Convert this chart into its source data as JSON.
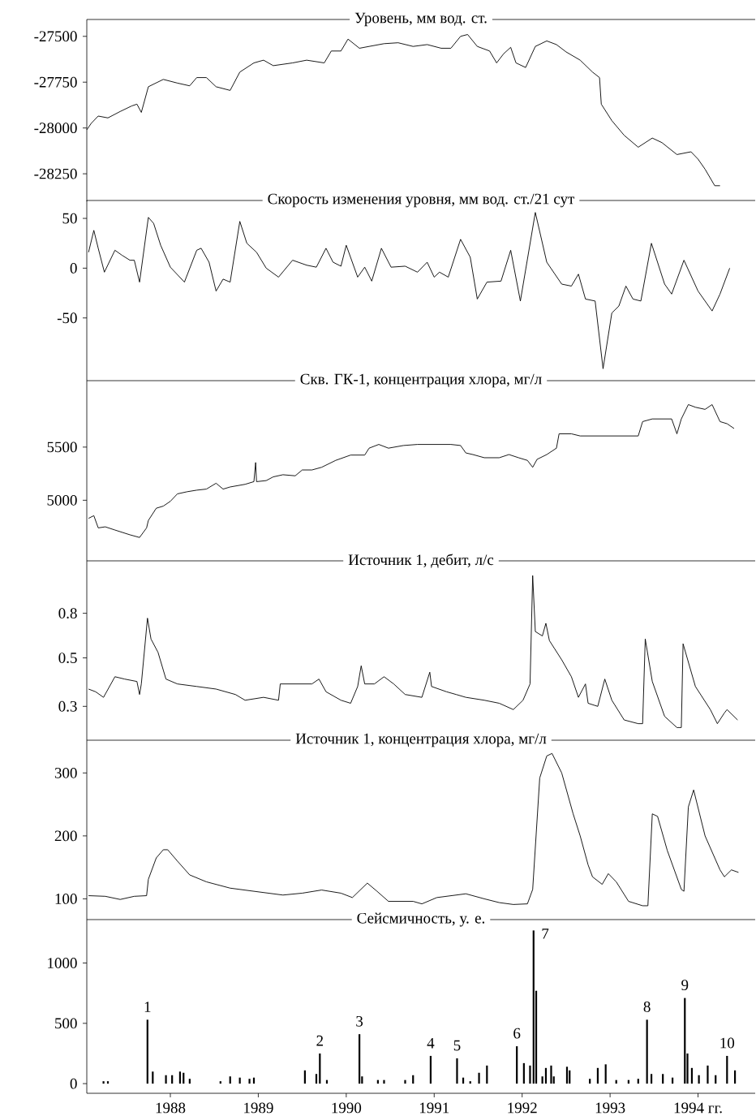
{
  "chart_data": [
    {
      "type": "line",
      "title": "Уровень, мм вод. ст.",
      "xlim": [
        1987.05,
        1994.65
      ],
      "ylim": [
        -28400,
        -27408
      ],
      "yticks": [
        -27500,
        -27750,
        -28000,
        -28250
      ],
      "tick_labels": "y",
      "x": [
        1987.05,
        1987.1,
        1987.18,
        1987.29,
        1987.43,
        1987.56,
        1987.62,
        1987.67,
        1987.75,
        1987.92,
        1988.08,
        1988.22,
        1988.3,
        1988.41,
        1988.52,
        1988.68,
        1988.79,
        1988.95,
        1989.06,
        1989.17,
        1989.39,
        1989.55,
        1989.75,
        1989.83,
        1989.94,
        1990.02,
        1990.15,
        1990.26,
        1990.43,
        1990.59,
        1990.76,
        1990.92,
        1991.08,
        1991.19,
        1991.3,
        1991.38,
        1991.49,
        1991.63,
        1991.71,
        1991.79,
        1991.87,
        1991.93,
        1992.04,
        1992.15,
        1992.28,
        1992.39,
        1992.5,
        1992.66,
        1992.8,
        1992.88,
        1992.9,
        1993.02,
        1993.16,
        1993.32,
        1993.48,
        1993.59,
        1993.76,
        1993.92,
        1994.0,
        1994.08,
        1994.19,
        1994.25
      ],
      "series": [
        {
          "color": "#000000",
          "values": [
            -28010,
            -27975,
            -27935,
            -27945,
            -27910,
            -27880,
            -27870,
            -27915,
            -27775,
            -27735,
            -27755,
            -27770,
            -27725,
            -27725,
            -27775,
            -27795,
            -27695,
            -27645,
            -27630,
            -27660,
            -27645,
            -27630,
            -27645,
            -27580,
            -27580,
            -27515,
            -27565,
            -27555,
            -27540,
            -27535,
            -27555,
            -27545,
            -27565,
            -27565,
            -27500,
            -27490,
            -27555,
            -27580,
            -27645,
            -27595,
            -27560,
            -27645,
            -27670,
            -27555,
            -27525,
            -27545,
            -27585,
            -27630,
            -27695,
            -27725,
            -27870,
            -27960,
            -28040,
            -28105,
            -28055,
            -28080,
            -28145,
            -28130,
            -28170,
            -28225,
            -28315,
            -28315
          ]
        }
      ]
    },
    {
      "type": "line",
      "title": "Скорость изменения уровня, мм вод. ст./21 сут",
      "xlim": [
        1987.05,
        1994.65
      ],
      "ylim": [
        -113,
        68
      ],
      "yticks": [
        50,
        0,
        -50
      ],
      "tick_labels": "y",
      "x": [
        1987.07,
        1987.13,
        1987.18,
        1987.25,
        1987.37,
        1987.45,
        1987.54,
        1987.59,
        1987.65,
        1987.75,
        1987.81,
        1987.89,
        1988.0,
        1988.16,
        1988.3,
        1988.35,
        1988.44,
        1988.52,
        1988.6,
        1988.68,
        1988.79,
        1988.87,
        1988.98,
        1989.09,
        1989.23,
        1989.39,
        1989.55,
        1989.66,
        1989.77,
        1989.85,
        1989.94,
        1990.0,
        1990.13,
        1990.21,
        1990.29,
        1990.4,
        1990.51,
        1990.67,
        1990.81,
        1990.92,
        1991.0,
        1991.06,
        1991.16,
        1991.3,
        1991.41,
        1991.49,
        1991.6,
        1991.76,
        1991.87,
        1991.98,
        1992.15,
        1992.28,
        1992.45,
        1992.56,
        1992.64,
        1992.72,
        1992.83,
        1992.92,
        1993.02,
        1993.1,
        1993.18,
        1993.26,
        1993.35,
        1993.47,
        1993.62,
        1993.7,
        1993.84,
        1994.0,
        1994.16,
        1994.25,
        1994.36
      ],
      "series": [
        {
          "color": "#000000",
          "values": [
            16,
            38,
            20,
            -4,
            18,
            13,
            8,
            8,
            -14,
            51,
            45,
            23,
            1,
            -14,
            18,
            20,
            6,
            -23,
            -11,
            -14,
            47,
            25,
            16,
            0,
            -9,
            8,
            3,
            1,
            20,
            6,
            2,
            23,
            -9,
            1,
            -13,
            20,
            1,
            2,
            -4,
            6,
            -9,
            -4,
            -9,
            29,
            11,
            -31,
            -14,
            -13,
            18,
            -33,
            56,
            6,
            -16,
            -18,
            -6,
            -31,
            -33,
            -101,
            -45,
            -38,
            -18,
            -31,
            -33,
            25,
            -16,
            -26,
            8,
            -23,
            -43,
            -26,
            0
          ]
        }
      ]
    },
    {
      "type": "line",
      "title": "Скв. ГК-1, концентрация хлора, мг/л",
      "xlim": [
        1987.05,
        1994.65
      ],
      "ylim": [
        4430,
        6125
      ],
      "yticks": [
        5500,
        5000
      ],
      "tick_labels": "y",
      "x": [
        1987.07,
        1987.13,
        1987.18,
        1987.26,
        1987.37,
        1987.54,
        1987.65,
        1987.73,
        1987.75,
        1987.84,
        1987.92,
        1988.0,
        1988.08,
        1988.19,
        1988.3,
        1988.41,
        1988.52,
        1988.6,
        1988.68,
        1988.85,
        1988.95,
        1988.97,
        1988.98,
        1989.09,
        1989.17,
        1989.28,
        1989.42,
        1989.5,
        1989.61,
        1989.72,
        1989.88,
        1990.05,
        1990.21,
        1990.26,
        1990.37,
        1990.48,
        1990.65,
        1990.81,
        1991.03,
        1991.19,
        1991.3,
        1991.36,
        1991.44,
        1991.57,
        1991.74,
        1991.85,
        1991.96,
        1992.06,
        1992.12,
        1992.17,
        1992.28,
        1992.39,
        1992.42,
        1992.56,
        1992.66,
        1992.94,
        1993.16,
        1993.32,
        1993.37,
        1993.48,
        1993.7,
        1993.76,
        1993.81,
        1993.89,
        1993.97,
        1994.08,
        1994.16,
        1994.25,
        1994.33,
        1994.41
      ],
      "series": [
        {
          "color": "#000000",
          "values": [
            4830,
            4855,
            4740,
            4750,
            4720,
            4675,
            4650,
            4740,
            4810,
            4925,
            4945,
            4990,
            5060,
            5080,
            5095,
            5105,
            5160,
            5105,
            5125,
            5150,
            5175,
            5355,
            5175,
            5185,
            5220,
            5240,
            5230,
            5285,
            5285,
            5310,
            5375,
            5425,
            5425,
            5490,
            5525,
            5490,
            5515,
            5525,
            5525,
            5525,
            5515,
            5445,
            5430,
            5400,
            5400,
            5430,
            5400,
            5375,
            5310,
            5385,
            5430,
            5490,
            5625,
            5625,
            5605,
            5605,
            5605,
            5605,
            5740,
            5765,
            5765,
            5625,
            5765,
            5900,
            5875,
            5855,
            5900,
            5740,
            5720,
            5675
          ]
        }
      ]
    },
    {
      "type": "line",
      "title": "Источник 1, дебит, л/с",
      "xlim": [
        1987.05,
        1994.65
      ],
      "ylim": [
        0.21,
        1.39
      ],
      "yticks": [
        0.8,
        0.5,
        0.3
      ],
      "log": true,
      "tick_labels": "y",
      "x": [
        1987.07,
        1987.15,
        1987.24,
        1987.37,
        1987.48,
        1987.62,
        1987.65,
        1987.67,
        1987.74,
        1987.78,
        1987.86,
        1987.95,
        1988.08,
        1988.3,
        1988.52,
        1988.74,
        1988.85,
        1989.06,
        1989.23,
        1989.25,
        1989.39,
        1989.61,
        1989.69,
        1989.77,
        1989.94,
        1990.05,
        1990.13,
        1990.17,
        1990.21,
        1990.32,
        1990.43,
        1990.54,
        1990.67,
        1990.86,
        1990.95,
        1990.97,
        1991.14,
        1991.25,
        1991.36,
        1991.57,
        1991.74,
        1991.9,
        1992.01,
        1992.09,
        1992.12,
        1992.15,
        1992.23,
        1992.27,
        1992.31,
        1992.45,
        1992.56,
        1992.64,
        1992.72,
        1992.75,
        1992.86,
        1992.94,
        1993.02,
        1993.16,
        1993.32,
        1993.37,
        1993.4,
        1993.48,
        1993.62,
        1993.76,
        1993.81,
        1993.83,
        1993.97,
        1994.14,
        1994.22,
        1994.3,
        1994.33,
        1994.45
      ],
      "series": [
        {
          "color": "#000000",
          "values": [
            0.36,
            0.35,
            0.33,
            0.41,
            0.4,
            0.39,
            0.34,
            0.38,
            0.76,
            0.61,
            0.53,
            0.4,
            0.38,
            0.37,
            0.36,
            0.34,
            0.32,
            0.33,
            0.32,
            0.38,
            0.38,
            0.38,
            0.4,
            0.35,
            0.32,
            0.31,
            0.37,
            0.46,
            0.38,
            0.38,
            0.41,
            0.38,
            0.34,
            0.33,
            0.43,
            0.37,
            0.35,
            0.34,
            0.33,
            0.32,
            0.31,
            0.29,
            0.32,
            0.38,
            1.19,
            0.66,
            0.63,
            0.72,
            0.6,
            0.49,
            0.41,
            0.33,
            0.38,
            0.31,
            0.3,
            0.4,
            0.32,
            0.26,
            0.25,
            0.25,
            0.61,
            0.39,
            0.27,
            0.24,
            0.24,
            0.58,
            0.37,
            0.29,
            0.25,
            0.28,
            0.29,
            0.26
          ]
        }
      ]
    },
    {
      "type": "line",
      "title": "Источник 1, концентрация хлора, мг/л",
      "xlim": [
        1987.05,
        1994.65
      ],
      "ylim": [
        67,
        352
      ],
      "yticks": [
        300,
        200,
        100
      ],
      "tick_labels": "y",
      "x": [
        1987.07,
        1987.26,
        1987.43,
        1987.59,
        1987.73,
        1987.75,
        1987.84,
        1987.92,
        1987.97,
        1988.08,
        1988.22,
        1988.41,
        1988.68,
        1988.95,
        1989.28,
        1989.5,
        1989.72,
        1989.94,
        1990.07,
        1990.24,
        1990.35,
        1990.48,
        1990.76,
        1990.86,
        1991.03,
        1991.36,
        1991.57,
        1991.74,
        1991.9,
        1992.06,
        1992.12,
        1992.2,
        1992.28,
        1992.34,
        1992.45,
        1992.58,
        1992.66,
        1992.75,
        1992.8,
        1992.91,
        1992.98,
        1993.07,
        1993.21,
        1993.37,
        1993.43,
        1993.48,
        1993.54,
        1993.65,
        1993.81,
        1993.84,
        1993.89,
        1993.95,
        1994.08,
        1994.25,
        1994.3,
        1994.38,
        1994.46
      ],
      "series": [
        {
          "color": "#000000",
          "values": [
            105,
            104,
            99,
            104,
            105,
            131,
            165,
            178,
            178,
            160,
            138,
            127,
            117,
            112,
            106,
            109,
            114,
            109,
            102,
            125,
            112,
            96,
            96,
            92,
            102,
            108,
            100,
            94,
            91,
            92,
            115,
            292,
            327,
            331,
            300,
            235,
            200,
            154,
            135,
            123,
            140,
            127,
            96,
            89,
            89,
            235,
            231,
            177,
            115,
            112,
            246,
            273,
            200,
            146,
            135,
            146,
            142
          ]
        }
      ]
    },
    {
      "type": "bar",
      "title": "Сейсмичность, у. е.",
      "xlim": [
        1987.05,
        1994.65
      ],
      "ylim": [
        -80,
        1360
      ],
      "yticks": [
        1000,
        500,
        0
      ],
      "xticks": [
        1988,
        1989,
        1990,
        1991,
        1992,
        1993,
        {
          "value": 1994,
          "label": "1994 гг."
        }
      ],
      "x": [
        1987.24,
        1987.29,
        1987.74,
        1987.8,
        1987.95,
        1988.02,
        1988.11,
        1988.15,
        1988.22,
        1988.57,
        1988.68,
        1988.79,
        1988.9,
        1988.95,
        1989.53,
        1989.66,
        1989.7,
        1989.78,
        1990.15,
        1990.18,
        1990.36,
        1990.43,
        1990.67,
        1990.76,
        1990.96,
        1991.26,
        1991.33,
        1991.41,
        1991.51,
        1991.6,
        1991.94,
        1992.02,
        1992.09,
        1992.13,
        1992.16,
        1992.23,
        1992.27,
        1992.33,
        1992.36,
        1992.51,
        1992.54,
        1992.77,
        1992.86,
        1992.95,
        1993.07,
        1993.21,
        1993.32,
        1993.42,
        1993.47,
        1993.6,
        1993.71,
        1993.85,
        1993.88,
        1993.93,
        1994.01,
        1994.11,
        1994.2,
        1994.33,
        1994.42
      ],
      "series": [
        {
          "color": "#000000",
          "values": [
            20,
            20,
            530,
            100,
            70,
            70,
            100,
            90,
            40,
            20,
            60,
            50,
            40,
            50,
            110,
            80,
            250,
            30,
            410,
            60,
            30,
            30,
            30,
            70,
            230,
            210,
            50,
            20,
            90,
            150,
            310,
            170,
            150,
            1270,
            770,
            60,
            130,
            150,
            60,
            140,
            110,
            40,
            130,
            160,
            30,
            30,
            40,
            530,
            80,
            80,
            50,
            710,
            250,
            130,
            70,
            150,
            70,
            230,
            110
          ]
        }
      ],
      "annotations": [
        {
          "text": "1",
          "x": 1987.74,
          "y": 530
        },
        {
          "text": "2",
          "x": 1989.7,
          "y": 250
        },
        {
          "text": "3",
          "x": 1990.15,
          "y": 410
        },
        {
          "text": "4",
          "x": 1990.96,
          "y": 230
        },
        {
          "text": "5",
          "x": 1991.26,
          "y": 210
        },
        {
          "text": "6",
          "x": 1991.94,
          "y": 310
        },
        {
          "text": "7",
          "x": 1992.13,
          "y": 1270
        },
        {
          "text": "8",
          "x": 1993.42,
          "y": 530
        },
        {
          "text": "9",
          "x": 1993.85,
          "y": 710
        },
        {
          "text": "10",
          "x": 1994.33,
          "y": 230
        }
      ]
    }
  ]
}
